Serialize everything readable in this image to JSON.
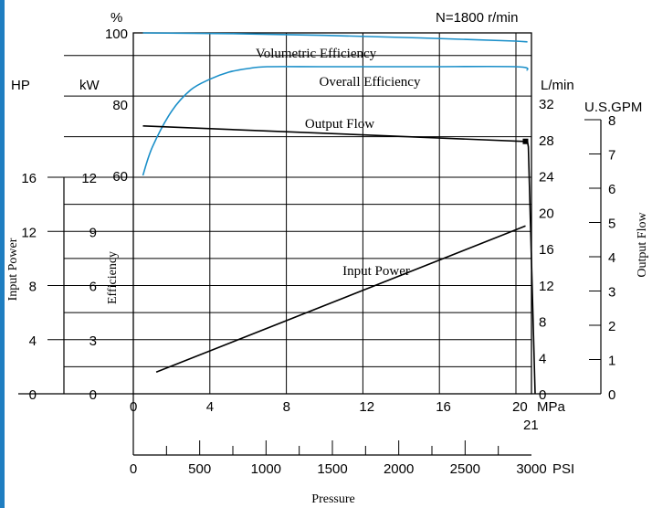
{
  "chart_data": {
    "type": "line",
    "title": "",
    "top_right_note": "N=1800 r/min",
    "xlabel": "Pressure",
    "x_axes": [
      {
        "unit": "MPa",
        "ticks": [
          0,
          4,
          8,
          12,
          16,
          20
        ],
        "extra_label": "21",
        "range": [
          0,
          21
        ]
      },
      {
        "unit": "PSI",
        "ticks": [
          0,
          500,
          1000,
          1500,
          2000,
          2500,
          3000
        ],
        "range": [
          0,
          3045
        ]
      }
    ],
    "y_axes": [
      {
        "title": "Input Power",
        "unit": "HP",
        "ticks": [
          0,
          4,
          8,
          12,
          16
        ],
        "range": [
          0,
          16
        ]
      },
      {
        "title": "",
        "unit": "kW",
        "ticks": [
          0,
          3,
          6,
          9,
          12
        ],
        "range": [
          0,
          12
        ]
      },
      {
        "title": "Efficiency",
        "unit": "%",
        "ticks": [
          60,
          80,
          100
        ],
        "range": [
          40,
          100
        ]
      },
      {
        "title": "",
        "unit": "L/min",
        "ticks": [
          0,
          4,
          8,
          12,
          16,
          20,
          24,
          28,
          32
        ],
        "range": [
          0,
          40
        ]
      },
      {
        "title": "Output Flow",
        "unit": "U.S.GPM",
        "ticks": [
          0,
          1,
          2,
          3,
          4,
          5,
          6,
          7,
          8
        ],
        "range": [
          0,
          10.56
        ]
      }
    ],
    "series": [
      {
        "name": "Volumetric Efficiency",
        "color": "#1a8fc9",
        "unit": "%",
        "x": [
          0.5,
          5,
          10,
          15,
          20,
          20.6
        ],
        "y": [
          100,
          99.8,
          99.3,
          98.6,
          97.7,
          97.5
        ]
      },
      {
        "name": "Overall Efficiency",
        "color": "#1a8fc9",
        "unit": "%",
        "x": [
          0.5,
          1,
          2,
          3,
          4,
          5,
          6,
          7,
          10,
          15,
          20,
          20.6
        ],
        "y": [
          60,
          68,
          78,
          84,
          87,
          89,
          90,
          90.5,
          90.5,
          90.5,
          90.5,
          89.5
        ]
      },
      {
        "name": "Output Flow",
        "color": "#000000",
        "unit": "L/min",
        "x": [
          0.5,
          20.3,
          20.6,
          20.65,
          21
        ],
        "y": [
          29.5,
          27.8,
          27.8,
          27.2,
          0
        ]
      },
      {
        "name": "Input Power",
        "color": "#000000",
        "unit": "kW",
        "x": [
          1.2,
          20.5
        ],
        "y": [
          1.2,
          9.3
        ]
      }
    ],
    "grid": true,
    "legend": "none"
  }
}
